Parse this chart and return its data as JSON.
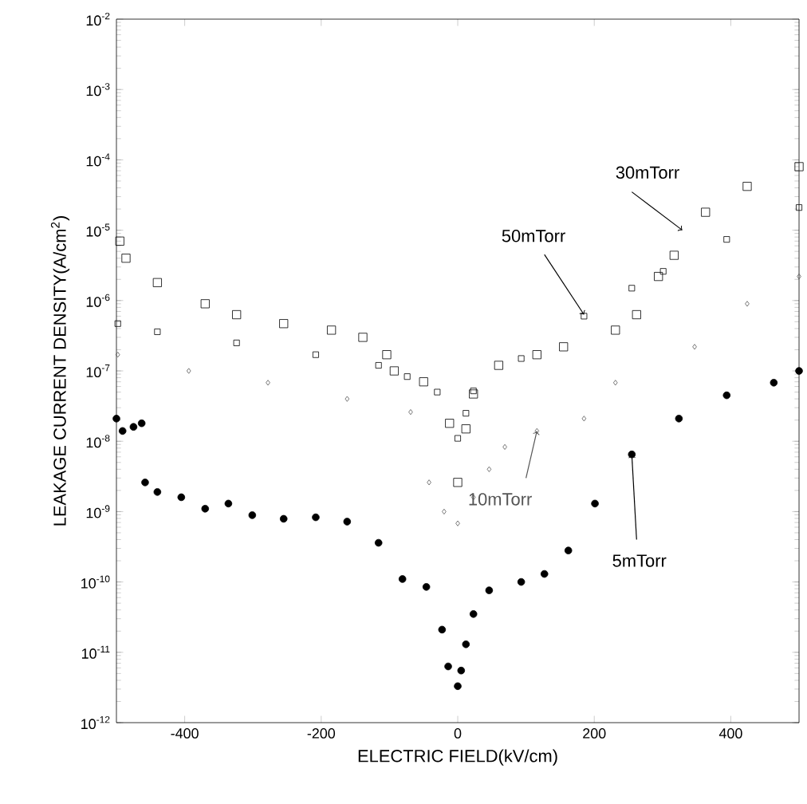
{
  "chart_data": {
    "type": "scatter",
    "xlabel": "ELECTRIC FIELD(kV/cm)",
    "ylabel": "LEAKAGE CURRENT DENSITY(A/cm$^{2}$)",
    "log": "y",
    "grid": false,
    "xlim": [
      -500,
      500
    ],
    "xticks": [
      -400,
      -200,
      0,
      200,
      400
    ],
    "ylim": [
      1e-12,
      0.01
    ],
    "yticks": [
      {
        "value": 1e-12,
        "label": "10$^{-12}$"
      },
      {
        "value": 1e-11,
        "label": "10$^{-11}$"
      },
      {
        "value": 1e-10,
        "label": "10$^{-10}$"
      },
      {
        "value": 1e-09,
        "label": "10$^{-9}$"
      },
      {
        "value": 1e-08,
        "label": "10$^{-8}$"
      },
      {
        "value": 1e-07,
        "label": "10$^{-7}$"
      },
      {
        "value": 1e-06,
        "label": "10$^{-6}$"
      },
      {
        "value": 1e-05,
        "label": "10$^{-5}$"
      },
      {
        "value": 0.0001,
        "label": "10$^{-4}$"
      },
      {
        "value": 0.001,
        "label": "10$^{-3}$"
      },
      {
        "value": 0.01,
        "label": "10$^{-2}$"
      }
    ],
    "series": [
      {
        "name": "30mTorr",
        "color": "#000000",
        "marker": "square",
        "x": [
          -495,
          -486,
          -440,
          -370,
          -324,
          -255,
          -185,
          -139,
          -104,
          -93,
          -50,
          -12,
          0,
          12,
          23,
          60,
          116,
          155,
          231,
          262,
          294,
          317,
          363,
          424,
          500
        ],
        "values": [
          7e-06,
          4e-06,
          1.8e-06,
          9e-07,
          6.3e-07,
          4.7e-07,
          3.8e-07,
          3e-07,
          1.7e-07,
          1e-07,
          7e-08,
          1.8e-08,
          2.6e-09,
          1.5e-08,
          4.7e-08,
          1.2e-07,
          1.7e-07,
          2.2e-07,
          3.8e-07,
          6.3e-07,
          2.2e-06,
          4.4e-06,
          1.8e-05,
          4.2e-05,
          8e-05
        ]
      },
      {
        "name": "50mTorr",
        "color": "#000000",
        "marker": "square",
        "x": [
          -498,
          -440,
          -324,
          -208,
          -116,
          -74,
          -30,
          0,
          12,
          23,
          93,
          185,
          255,
          301,
          394,
          500
        ],
        "values": [
          4.7e-07,
          3.6e-07,
          2.5e-07,
          1.7e-07,
          1.2e-07,
          8.3e-08,
          5e-08,
          1.1e-08,
          2.5e-08,
          5.2e-08,
          1.5e-07,
          6e-07,
          1.5e-06,
          2.6e-06,
          7.4e-06,
          2.1e-05
        ]
      },
      {
        "name": "10mTorr",
        "color": "#555555",
        "marker": "diamond",
        "x": [
          -498,
          -394,
          -278,
          -162,
          -69,
          -42,
          -20,
          0,
          23,
          46,
          69,
          116,
          185,
          231,
          347,
          424,
          500
        ],
        "values": [
          1.7e-07,
          1e-07,
          6.8e-08,
          4e-08,
          2.6e-08,
          2.6e-09,
          1e-09,
          6.8e-10,
          1.6e-09,
          4e-09,
          8.3e-09,
          1.4e-08,
          2.1e-08,
          6.8e-08,
          2.2e-07,
          9e-07,
          2.2e-06
        ]
      },
      {
        "name": "5mTorr",
        "color": "#000000",
        "marker": "circle",
        "x": [
          -500,
          -491,
          -475,
          -463,
          -458,
          -440,
          -405,
          -370,
          -336,
          -301,
          -255,
          -208,
          -162,
          -116,
          -81,
          -46,
          -23,
          -14,
          0,
          5,
          12,
          23,
          46,
          93,
          127,
          162,
          201,
          255,
          324,
          394,
          463,
          500
        ],
        "values": [
          2.1e-08,
          1.4e-08,
          1.6e-08,
          1.8e-08,
          2.6e-09,
          1.9e-09,
          1.6e-09,
          1.1e-09,
          1.3e-09,
          8.9e-10,
          7.9e-10,
          8.3e-10,
          7.2e-10,
          3.6e-10,
          1.1e-10,
          8.5e-11,
          2.1e-11,
          6.3e-12,
          3.3e-12,
          5.5e-12,
          1.3e-11,
          3.5e-11,
          7.6e-11,
          1e-10,
          1.3e-10,
          2.8e-10,
          1.3e-09,
          6.5e-09,
          2.1e-08,
          4.5e-08,
          6.8e-08,
          1e-07
        ]
      }
    ]
  }
}
